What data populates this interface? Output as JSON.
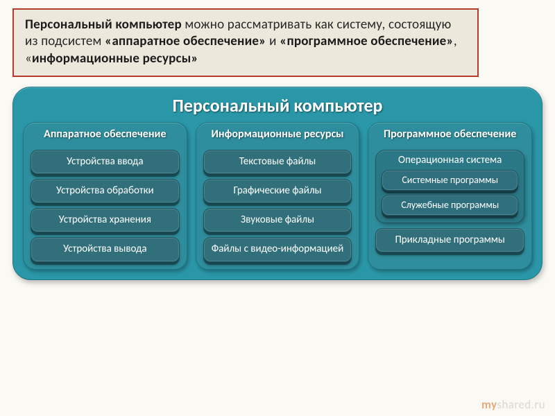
{
  "colors": {
    "page_bg": "#fbf9f3",
    "intro_border": "#b53a2a",
    "intro_bg": "#ece9dc",
    "intro_text": "#262626",
    "intro_bold": "#1a1a1a",
    "diagram_bg": "#2a97a8",
    "diagram_border": "#1d7683",
    "col_bg": "#2f8e9d",
    "col_inner": "#2b8594",
    "pill_bg": "#316f7a",
    "pill_border": "#1f5560",
    "nested_bg": "#2f6f7d",
    "os_bg": "#2a7786",
    "watermark_my": "#d26a1a",
    "watermark_rest": "#bdbdbd"
  },
  "intro": {
    "t1": "Персональный компьютер",
    "t2": " можно рассматривать как систему, состоящую из подсистем ",
    "t3": "«аппаратное обеспечение»",
    "t4": " и ",
    "t5": "«программное обеспечение»",
    "t6": ", «",
    "t7": "информационные ресурсы»"
  },
  "diagram": {
    "title": "Персональный компьютер",
    "columns": [
      {
        "title": "Аппаратное обеспечение",
        "items": [
          "Устройства ввода",
          "Устройства обработки",
          "Устройства хранения",
          "Устройства вывода"
        ]
      },
      {
        "title": "Информационные ресурсы",
        "items": [
          "Текстовые файлы",
          "Графические файлы",
          "Звуковые файлы",
          "Файлы с видео-информацией"
        ]
      },
      {
        "title": "Программное обеспечение",
        "os": {
          "title": "Операционная система",
          "items": [
            "Системные программы",
            "Служебные программы"
          ]
        },
        "trailing": "Прикладные программы"
      }
    ]
  },
  "watermark": {
    "my": "my",
    "rest": "shared.ru"
  }
}
